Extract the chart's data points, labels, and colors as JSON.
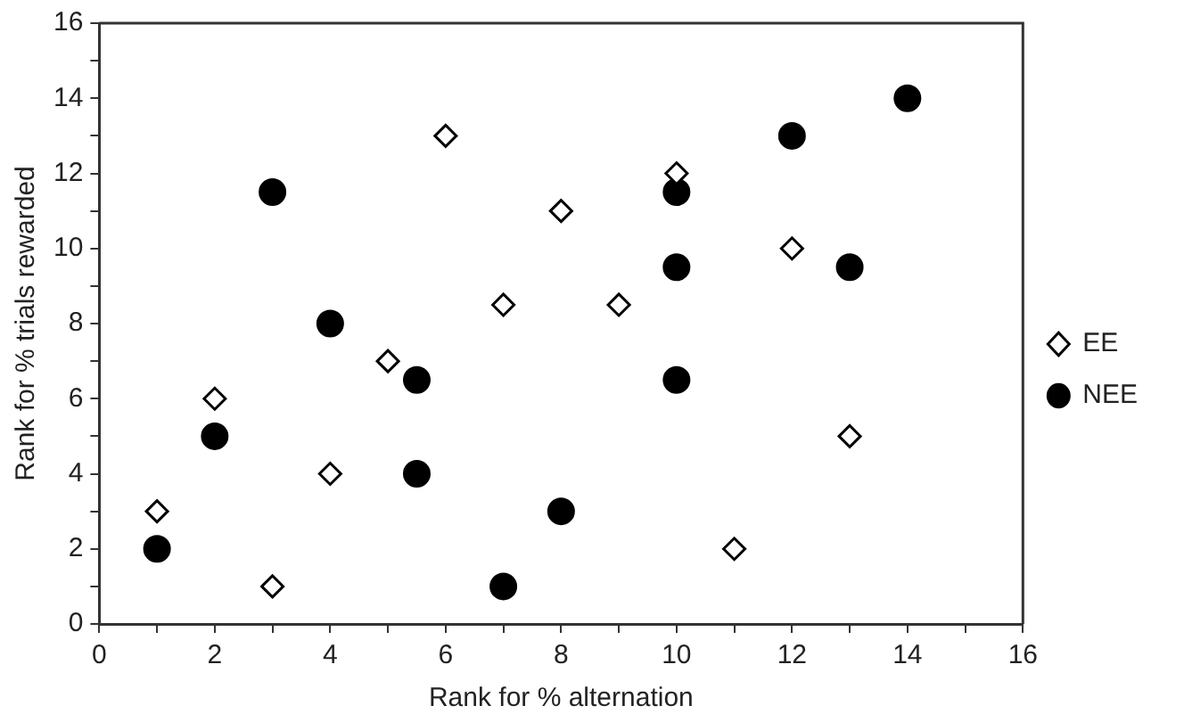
{
  "chart_data": {
    "type": "scatter",
    "xlabel": "Rank for % alternation",
    "ylabel": "Rank for % trials rewarded",
    "xlim": [
      0,
      16
    ],
    "ylim": [
      0,
      16
    ],
    "xticks": [
      0,
      {
        "value": 1,
        "label": null
      },
      2,
      {
        "value": 3,
        "label": null
      },
      4,
      {
        "value": 5,
        "label": null
      },
      6,
      {
        "value": 7,
        "label": null
      },
      8,
      {
        "value": 9,
        "label": null
      },
      10,
      {
        "value": 11,
        "label": null
      },
      12,
      {
        "value": 13,
        "label": null
      },
      14,
      {
        "value": 15,
        "label": null
      },
      16
    ],
    "yticks": [
      0,
      {
        "value": 1,
        "label": null
      },
      2,
      {
        "value": 3,
        "label": null
      },
      4,
      {
        "value": 5,
        "label": null
      },
      6,
      {
        "value": 7,
        "label": null
      },
      8,
      {
        "value": 9,
        "label": null
      },
      10,
      {
        "value": 11,
        "label": null
      },
      12,
      {
        "value": 13,
        "label": null
      },
      14,
      {
        "value": 15,
        "label": null
      },
      16
    ],
    "grid": false,
    "legend": "right",
    "series": [
      {
        "name": "EE",
        "color": "#000000",
        "marker": "diamond",
        "x": [
          1,
          2,
          3,
          4,
          5,
          6,
          7,
          8,
          9,
          10,
          11,
          12,
          13
        ],
        "values": [
          3,
          6,
          1,
          4,
          7,
          13,
          8.5,
          11,
          8.5,
          12,
          2,
          10,
          5
        ]
      },
      {
        "name": "NEE",
        "color": "#000000",
        "marker": "circle",
        "x": [
          1,
          2,
          3,
          4,
          5.5,
          5.5,
          7,
          8,
          10,
          10,
          10,
          12,
          13,
          14
        ],
        "values": [
          2,
          5,
          11.5,
          8,
          6.5,
          4,
          1,
          3,
          11.5,
          9.5,
          6.5,
          13,
          9.5,
          14
        ]
      }
    ]
  }
}
